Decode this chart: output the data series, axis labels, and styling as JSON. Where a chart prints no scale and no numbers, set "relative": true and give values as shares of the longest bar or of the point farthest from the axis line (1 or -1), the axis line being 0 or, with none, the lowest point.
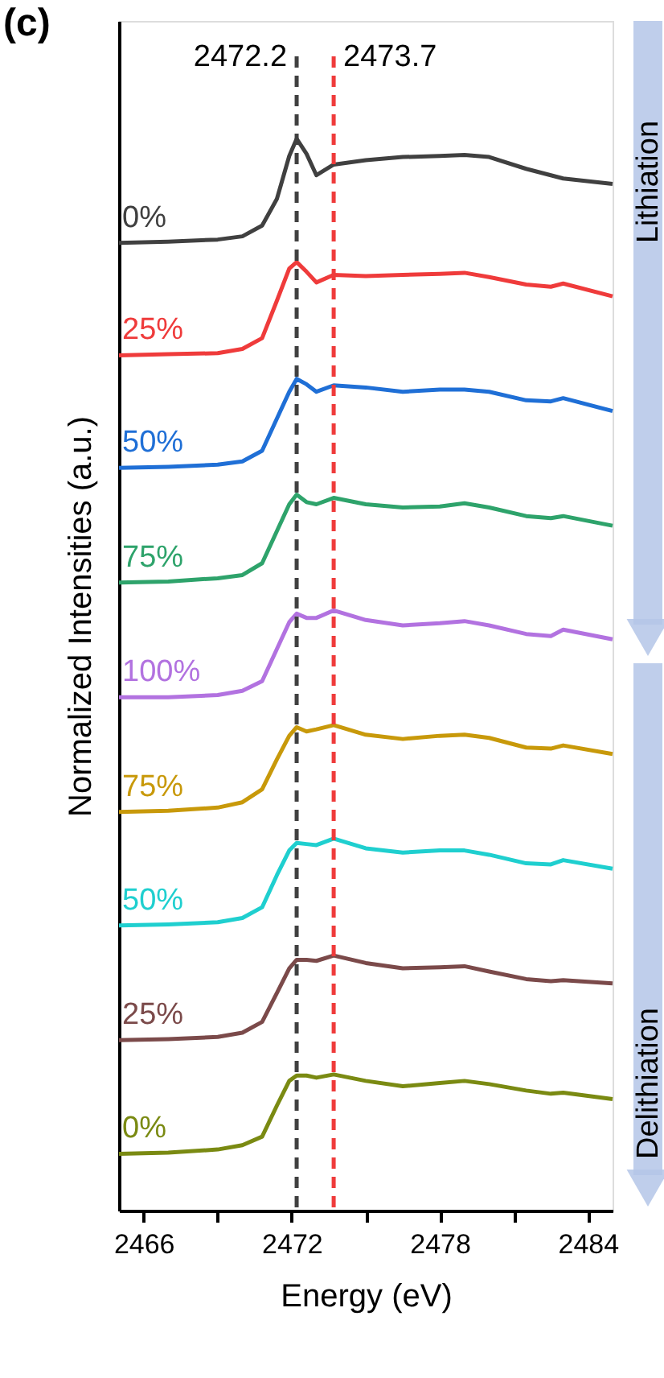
{
  "chart_data": {
    "type": "line",
    "relative": true,
    "grid": false,
    "xlabel": "Energy (eV)",
    "ylabel": "Normalized Intensities (a.u.)",
    "xlim": [
      2465,
      2485
    ],
    "xticks": [
      2466,
      {
        "value": 2469,
        "label": null
      },
      2472,
      {
        "value": 2475,
        "label": null
      },
      2478,
      {
        "value": 2481,
        "label": null
      },
      2484
    ],
    "x": [
      2465,
      2467,
      2469,
      2470,
      2470.8,
      2471.4,
      2471.9,
      2472.2,
      2472.6,
      2473,
      2473.7,
      2475,
      2476.5,
      2478,
      2479,
      2480,
      2481.5,
      2482.5,
      2483,
      2485
    ],
    "series": [
      {
        "name": "0%",
        "color": "#404040",
        "values": [
          0.903,
          0.904,
          0.906,
          0.909,
          0.919,
          0.944,
          0.984,
          1.0,
          0.986,
          0.966,
          0.976,
          0.98,
          0.983,
          0.984,
          0.985,
          0.983,
          0.972,
          0.966,
          0.963,
          0.958
        ]
      },
      {
        "name": "25%",
        "color": "#ef3b3b",
        "values": [
          0.798,
          0.799,
          0.8,
          0.804,
          0.814,
          0.849,
          0.879,
          0.885,
          0.876,
          0.866,
          0.873,
          0.872,
          0.873,
          0.874,
          0.875,
          0.871,
          0.864,
          0.862,
          0.865,
          0.853
        ]
      },
      {
        "name": "50%",
        "color": "#1f6fd6",
        "values": [
          0.693,
          0.694,
          0.696,
          0.699,
          0.709,
          0.739,
          0.764,
          0.776,
          0.771,
          0.764,
          0.77,
          0.768,
          0.764,
          0.766,
          0.766,
          0.764,
          0.756,
          0.755,
          0.758,
          0.746
        ]
      },
      {
        "name": "75%",
        "color": "#2ea36b",
        "values": [
          0.586,
          0.587,
          0.59,
          0.593,
          0.604,
          0.634,
          0.659,
          0.668,
          0.661,
          0.659,
          0.665,
          0.659,
          0.656,
          0.657,
          0.66,
          0.656,
          0.648,
          0.646,
          0.648,
          0.639
        ]
      },
      {
        "name": "100%",
        "color": "#b272e0",
        "values": [
          0.479,
          0.479,
          0.481,
          0.485,
          0.494,
          0.524,
          0.549,
          0.557,
          0.553,
          0.553,
          0.56,
          0.551,
          0.546,
          0.548,
          0.55,
          0.546,
          0.538,
          0.536,
          0.542,
          0.533
        ]
      },
      {
        "name": "75%",
        "color": "#c8990a",
        "values": [
          0.372,
          0.373,
          0.376,
          0.381,
          0.393,
          0.421,
          0.443,
          0.451,
          0.447,
          0.449,
          0.453,
          0.444,
          0.44,
          0.443,
          0.444,
          0.441,
          0.432,
          0.431,
          0.434,
          0.426
        ]
      },
      {
        "name": "50%",
        "color": "#1fcfcf",
        "values": [
          0.266,
          0.267,
          0.269,
          0.273,
          0.283,
          0.313,
          0.336,
          0.343,
          0.342,
          0.341,
          0.347,
          0.338,
          0.334,
          0.336,
          0.336,
          0.332,
          0.324,
          0.323,
          0.327,
          0.319
        ]
      },
      {
        "name": "25%",
        "color": "#7b4a4a",
        "values": [
          0.159,
          0.16,
          0.162,
          0.166,
          0.176,
          0.203,
          0.226,
          0.234,
          0.234,
          0.233,
          0.238,
          0.231,
          0.226,
          0.227,
          0.228,
          0.223,
          0.216,
          0.214,
          0.215,
          0.212
        ]
      },
      {
        "name": "0%",
        "color": "#7a8a12",
        "values": [
          0.053,
          0.054,
          0.057,
          0.061,
          0.069,
          0.098,
          0.121,
          0.126,
          0.126,
          0.124,
          0.127,
          0.121,
          0.116,
          0.119,
          0.121,
          0.118,
          0.112,
          0.109,
          0.11,
          0.104
        ]
      }
    ],
    "ref_lines": [
      {
        "axis": "x",
        "value": 2472.2,
        "label": "2472.2",
        "color": "#404040",
        "line_style": "dashed"
      },
      {
        "axis": "x",
        "value": 2473.7,
        "label": "2473.7",
        "color": "#ef3b3b",
        "line_style": "dashed"
      }
    ],
    "annotations": [
      "(c)",
      "Lithiation",
      "Delithiation"
    ]
  }
}
